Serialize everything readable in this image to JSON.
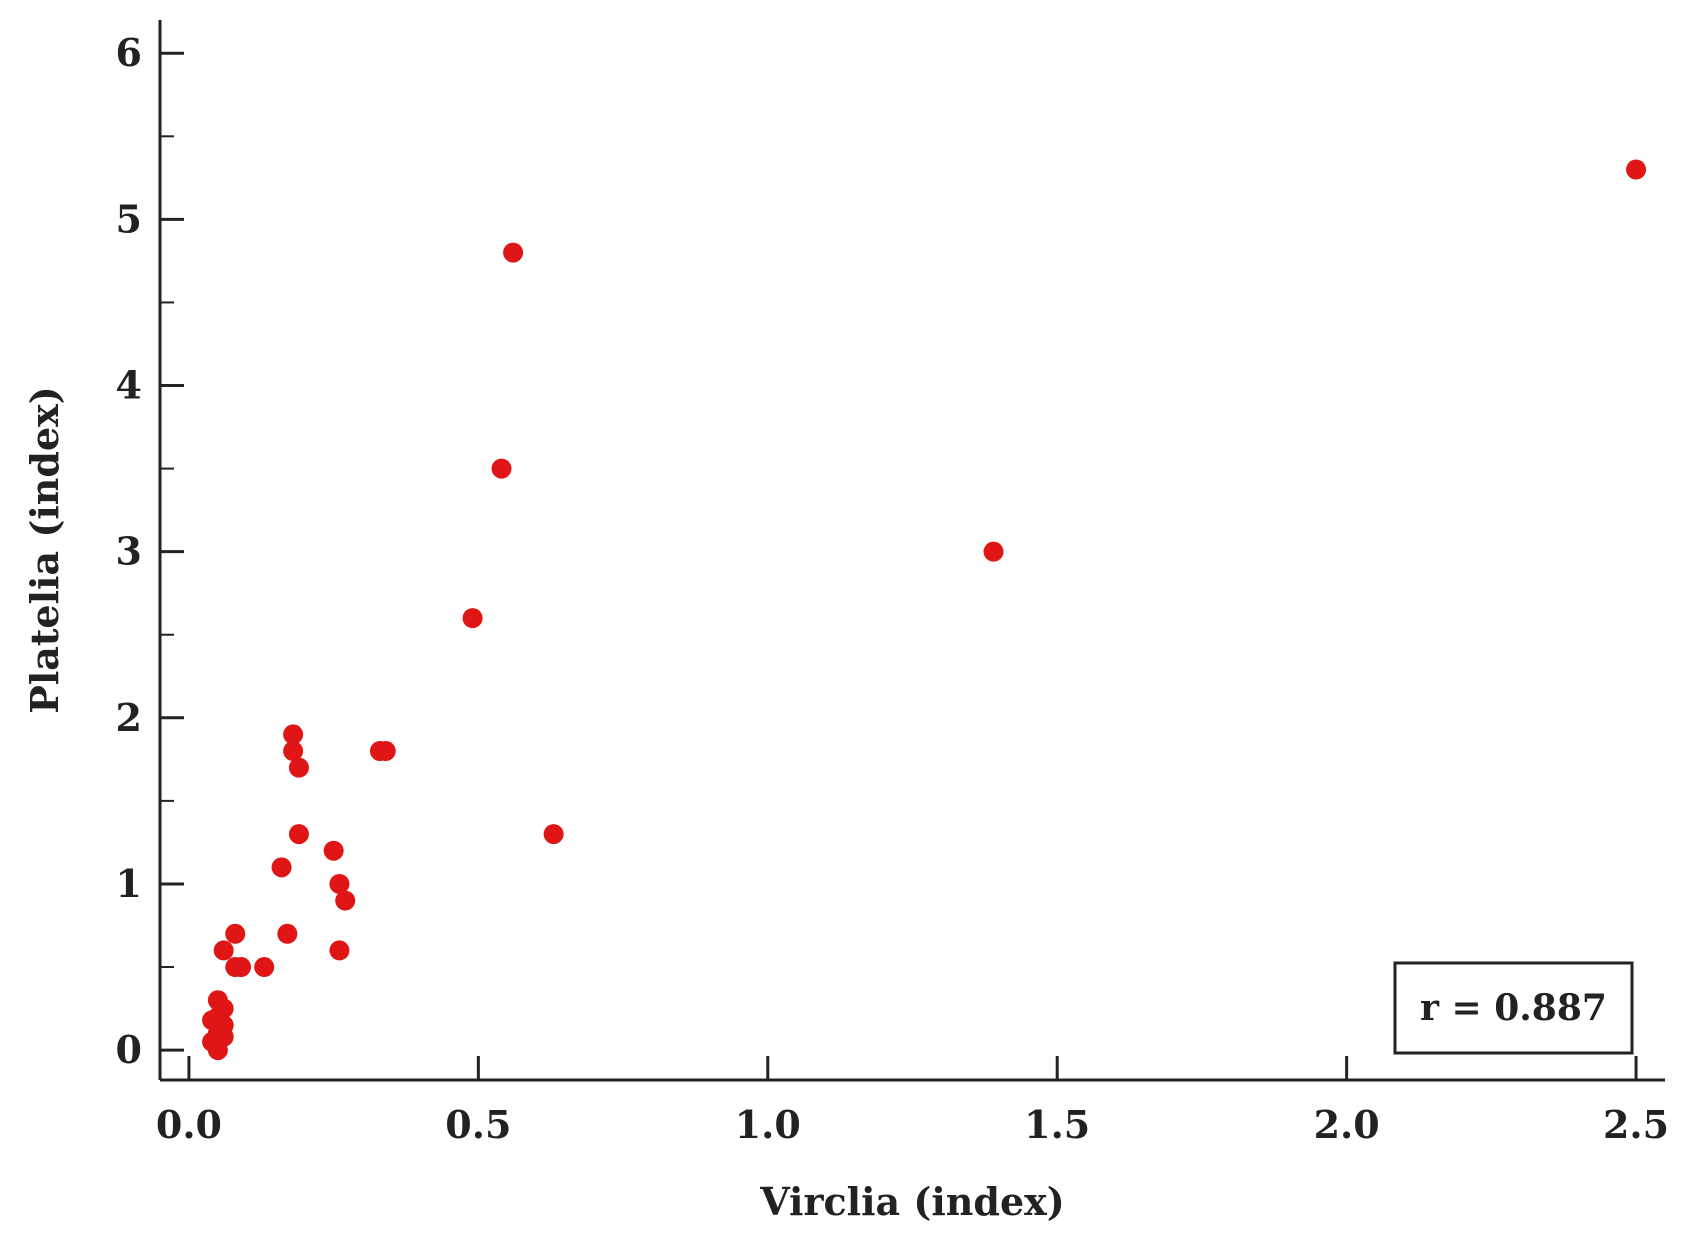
{
  "chart_data": {
    "type": "scatter",
    "title": "",
    "xlabel": "Virclia (index)",
    "ylabel": "Platelia (index)",
    "xlim": [
      -0.05,
      2.55
    ],
    "ylim": [
      -0.18,
      6.2
    ],
    "xticks": [
      0.0,
      0.5,
      1.0,
      1.5,
      2.0,
      2.5
    ],
    "xtick_labels": [
      "0.0",
      "0.5",
      "1.0",
      "1.5",
      "2.0",
      "2.5"
    ],
    "yticks": [
      0,
      1,
      2,
      3,
      4,
      5,
      6
    ],
    "ytick_labels": [
      "0",
      "1",
      "2",
      "3",
      "4",
      "5",
      "6"
    ],
    "grid": false,
    "marker_color": "#e01515",
    "annotation": "r = 0.887",
    "annotation_position": "bottom-right",
    "points": [
      {
        "x": 0.04,
        "y": 0.05
      },
      {
        "x": 0.05,
        "y": 0.0
      },
      {
        "x": 0.05,
        "y": 0.1
      },
      {
        "x": 0.06,
        "y": 0.15
      },
      {
        "x": 0.05,
        "y": 0.2
      },
      {
        "x": 0.06,
        "y": 0.25
      },
      {
        "x": 0.05,
        "y": 0.3
      },
      {
        "x": 0.06,
        "y": 0.08
      },
      {
        "x": 0.04,
        "y": 0.18
      },
      {
        "x": 0.06,
        "y": 0.6
      },
      {
        "x": 0.08,
        "y": 0.7
      },
      {
        "x": 0.08,
        "y": 0.5
      },
      {
        "x": 0.09,
        "y": 0.5
      },
      {
        "x": 0.13,
        "y": 0.5
      },
      {
        "x": 0.16,
        "y": 1.1
      },
      {
        "x": 0.17,
        "y": 0.7
      },
      {
        "x": 0.18,
        "y": 1.9
      },
      {
        "x": 0.18,
        "y": 1.8
      },
      {
        "x": 0.19,
        "y": 1.7
      },
      {
        "x": 0.19,
        "y": 1.3
      },
      {
        "x": 0.25,
        "y": 1.2
      },
      {
        "x": 0.26,
        "y": 1.0
      },
      {
        "x": 0.27,
        "y": 0.9
      },
      {
        "x": 0.26,
        "y": 0.6
      },
      {
        "x": 0.33,
        "y": 1.8
      },
      {
        "x": 0.34,
        "y": 1.8
      },
      {
        "x": 0.49,
        "y": 2.6
      },
      {
        "x": 0.54,
        "y": 3.5
      },
      {
        "x": 0.56,
        "y": 4.8
      },
      {
        "x": 0.63,
        "y": 1.3
      },
      {
        "x": 1.39,
        "y": 3.0
      },
      {
        "x": 2.5,
        "y": 5.3
      }
    ]
  }
}
